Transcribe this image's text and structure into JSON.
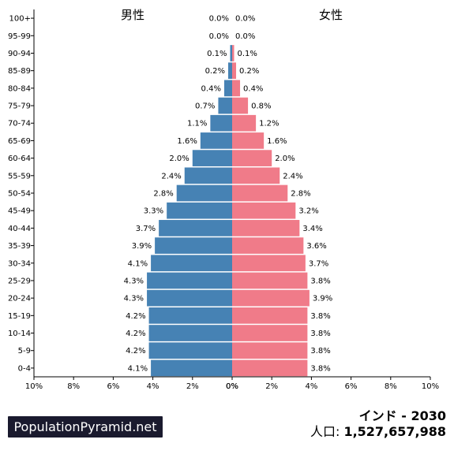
{
  "labels": {
    "male": "男性",
    "female": "女性"
  },
  "brand": "PopulationPyramid.net",
  "country_year": "インド - 2030",
  "population_label": "人口:",
  "population_value": "1,527,657,988",
  "colors": {
    "male": "#4682b4",
    "female": "#f07b89"
  },
  "chart_data": {
    "type": "bar",
    "orientation": "horizontal-pyramid",
    "categories": [
      "0-4",
      "5-9",
      "10-14",
      "15-19",
      "20-24",
      "25-29",
      "30-34",
      "35-39",
      "40-44",
      "45-49",
      "50-54",
      "55-59",
      "60-64",
      "65-69",
      "70-74",
      "75-79",
      "80-84",
      "85-89",
      "90-94",
      "95-99",
      "100+"
    ],
    "series": [
      {
        "name": "男性",
        "values": [
          4.1,
          4.2,
          4.2,
          4.2,
          4.3,
          4.3,
          4.1,
          3.9,
          3.7,
          3.3,
          2.8,
          2.4,
          2.0,
          1.6,
          1.1,
          0.7,
          0.4,
          0.2,
          0.1,
          0.0,
          0.0
        ]
      },
      {
        "name": "女性",
        "values": [
          3.8,
          3.8,
          3.8,
          3.8,
          3.9,
          3.8,
          3.7,
          3.6,
          3.4,
          3.2,
          2.8,
          2.4,
          2.0,
          1.6,
          1.2,
          0.8,
          0.4,
          0.2,
          0.1,
          0.0,
          0.0
        ]
      }
    ],
    "x_ticks": [
      "10%",
      "8%",
      "6%",
      "4%",
      "2%",
      "0%",
      "0%",
      "2%",
      "4%",
      "6%",
      "8%",
      "10%"
    ],
    "xlim": [
      0,
      10
    ]
  }
}
